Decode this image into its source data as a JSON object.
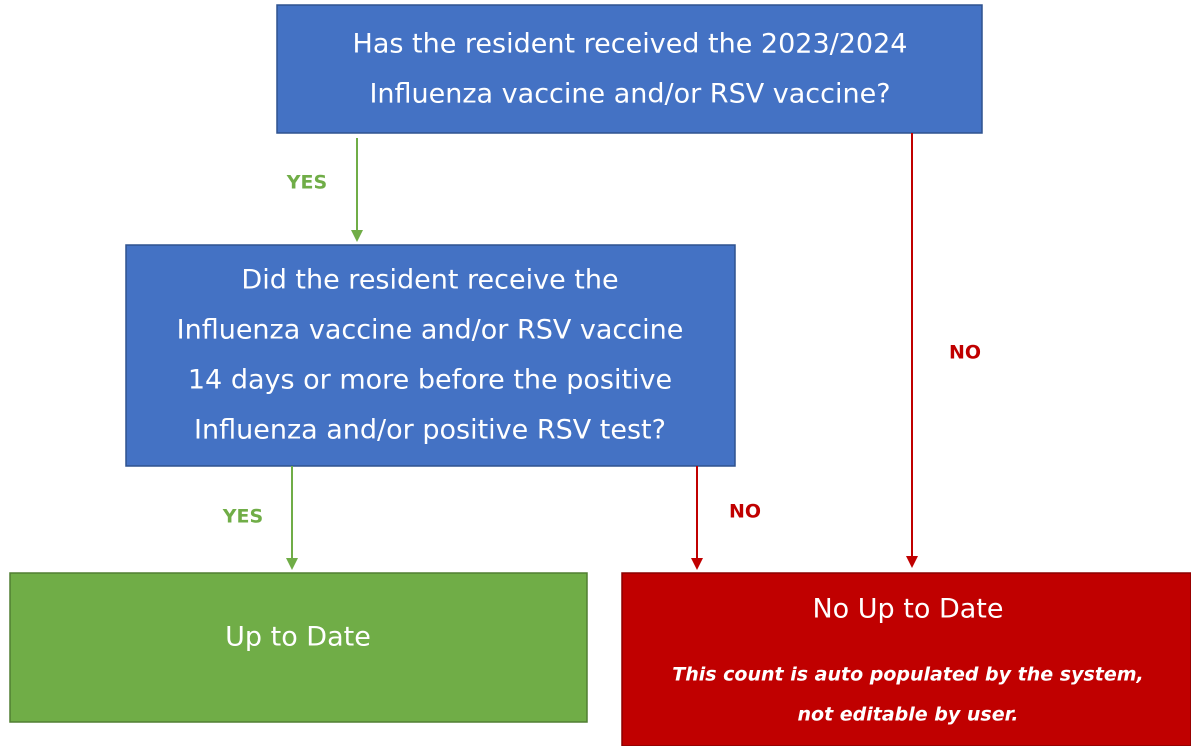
{
  "nodes": [
    {
      "lines": [
        "Has the resident received the 2023/2024",
        "Influenza vaccine and/or RSV vaccine?"
      ]
    },
    {
      "lines": [
        "Did the resident receive the",
        "Influenza vaccine and/or RSV vaccine",
        "14 days or more before the positive",
        "Influenza and/or positive RSV test?"
      ]
    },
    {
      "lines": [
        "Up to Date"
      ]
    },
    {
      "lines": [
        "No Up to Date"
      ],
      "note": [
        "This count is auto populated by the system,",
        "not editable by user."
      ]
    }
  ],
  "edges": [
    {
      "label": "YES"
    },
    {
      "label": "NO"
    },
    {
      "label": "YES"
    },
    {
      "label": "NO"
    }
  ]
}
